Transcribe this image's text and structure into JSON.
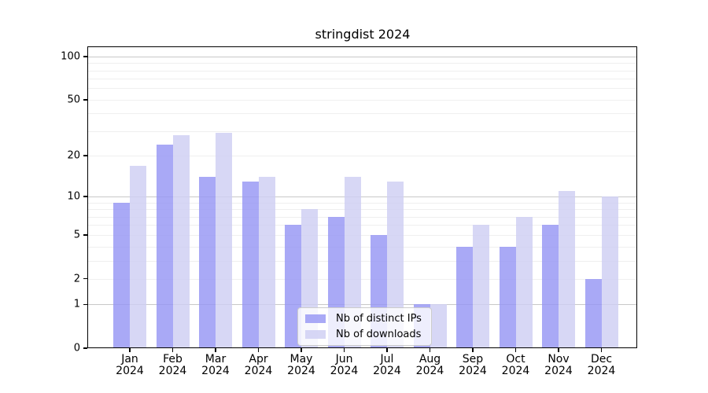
{
  "chart_data": {
    "type": "bar",
    "title": "stringdist 2024",
    "categories": [
      "Jan",
      "Feb",
      "Mar",
      "Apr",
      "May",
      "Jun",
      "Jul",
      "Aug",
      "Sep",
      "Oct",
      "Nov",
      "Dec"
    ],
    "x_year_suffix": "2024",
    "series": [
      {
        "name": "Nb of distinct IPs",
        "color": "rgba(150,150,244,0.82)",
        "values": [
          9,
          24,
          14,
          13,
          6,
          7,
          5,
          1,
          4,
          4,
          6,
          2
        ]
      },
      {
        "name": "Nb of downloads",
        "color": "rgba(206,206,243,0.82)",
        "values": [
          17,
          28,
          29,
          14,
          8,
          14,
          13,
          1,
          6,
          7,
          11,
          10
        ]
      }
    ],
    "y_scale": "log1p",
    "ylim": [
      0,
      116
    ],
    "y_ticks": [
      0,
      1,
      2,
      5,
      10,
      20,
      50,
      100
    ],
    "y_major_gridlines": [
      1,
      10,
      100
    ],
    "y_minor_gridlines": [
      2,
      3,
      4,
      5,
      6,
      7,
      8,
      9,
      20,
      30,
      40,
      50,
      60,
      70,
      80,
      90
    ],
    "grid": true,
    "legend_position": "lower center",
    "xlabel": "",
    "ylabel": ""
  },
  "colors": {
    "major_grid": "#c8c8c8",
    "minor_grid": "#efefef",
    "spine": "#000000",
    "legend_border": "#cccccc",
    "legend_background": "rgba(255,255,255,0.8)"
  }
}
